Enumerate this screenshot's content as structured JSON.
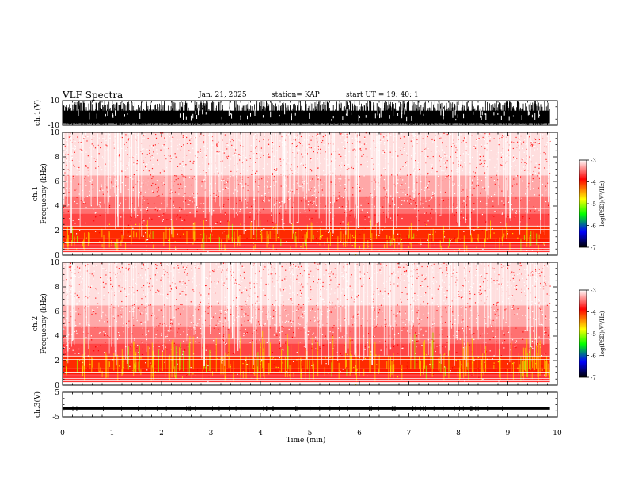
{
  "header": {
    "title": "VLF Spectra",
    "date": "Jan. 21, 2025",
    "station": "station= KAP",
    "start_ut": "start UT =  19: 40: 1"
  },
  "colorbar": {
    "label": "log(PSD)(V²/Hz)",
    "ticks": [
      "-3",
      "-4",
      "-5",
      "-6",
      "-7"
    ],
    "colors": [
      "#ffffff",
      "#ff0000",
      "#ffff00",
      "#00ff00",
      "#0000ff",
      "#000000"
    ]
  },
  "chart_data": [
    {
      "type": "line",
      "ylabel": "ch.1(V)",
      "ylim": [
        -10,
        10
      ],
      "ytick_labels": [
        "10",
        "-10"
      ],
      "description_level": "dense waveform spanning the full range",
      "x_range": [
        0,
        9.85
      ]
    },
    {
      "type": "heatmap",
      "ylabel": "ch.1",
      "ylabel2": "Frequency (kHz)",
      "ylim": [
        0,
        10
      ],
      "ytick_labels": [
        "0",
        "2",
        "4",
        "6",
        "8",
        "10"
      ],
      "x_range": [
        0,
        9.85
      ]
    },
    {
      "type": "heatmap",
      "ylabel": "ch.2",
      "ylabel2": "Frequency (kHz)",
      "ylim": [
        0,
        10
      ],
      "ytick_labels": [
        "0",
        "2",
        "4",
        "6",
        "8",
        "10"
      ],
      "x_range": [
        0,
        9.85
      ]
    },
    {
      "type": "line",
      "ylabel": "ch.3(V)",
      "ylim": [
        -5,
        5
      ],
      "ytick_labels": [
        "5",
        "-5"
      ],
      "baseline_level": -1.5,
      "x_range": [
        0,
        9.85
      ]
    }
  ],
  "xaxis": {
    "label": "Time (min)",
    "xlim": [
      0,
      10
    ],
    "tick_labels": [
      "0",
      "1",
      "2",
      "3",
      "4",
      "5",
      "6",
      "7",
      "8",
      "9",
      "10"
    ]
  }
}
